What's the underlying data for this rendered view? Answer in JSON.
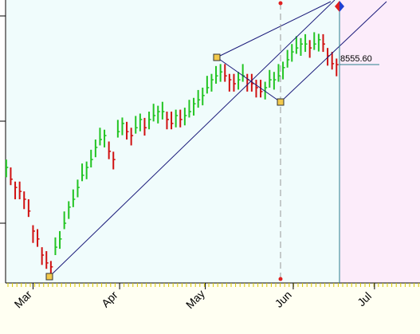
{
  "chart_data": {
    "type": "hlc",
    "high": [
      8314,
      8294,
      8258,
      8258,
      8233,
      8213,
      8147,
      8137,
      8091,
      8081,
      8056,
      8116,
      8132,
      8182,
      8208,
      8238,
      8263,
      8304,
      8309,
      8339,
      8365,
      8395,
      8390,
      8360,
      8334,
      8415,
      8421,
      8410,
      8395,
      8425,
      8431,
      8420,
      8436,
      8456,
      8451,
      8461,
      8436,
      8436,
      8441,
      8441,
      8446,
      8466,
      8471,
      8491,
      8497,
      8527,
      8532,
      8552,
      8557,
      8557,
      8532,
      8532,
      8537,
      8557,
      8532,
      8532,
      8517,
      8517,
      8512,
      8542,
      8537,
      8557,
      8563,
      8593,
      8608,
      8628,
      8623,
      8633,
      8618,
      8638,
      8634,
      8633,
      8598,
      8588,
      8571
    ],
    "low": [
      8269,
      8249,
      8213,
      8213,
      8188,
      8168,
      8102,
      8092,
      8046,
      8036,
      8011,
      8071,
      8087,
      8137,
      8163,
      8193,
      8218,
      8259,
      8264,
      8294,
      8320,
      8350,
      8345,
      8315,
      8289,
      8370,
      8376,
      8365,
      8350,
      8380,
      8386,
      8375,
      8391,
      8411,
      8406,
      8416,
      8391,
      8391,
      8396,
      8396,
      8401,
      8421,
      8426,
      8446,
      8452,
      8482,
      8487,
      8507,
      8512,
      8512,
      8487,
      8487,
      8492,
      8512,
      8487,
      8487,
      8472,
      8472,
      8467,
      8497,
      8492,
      8512,
      8518,
      8548,
      8563,
      8583,
      8578,
      8588,
      8573,
      8593,
      8589,
      8588,
      8553,
      8543,
      8526
    ],
    "close": [
      8294,
      8264,
      8243,
      8233,
      8213,
      8183,
      8132,
      8112,
      8071,
      8051,
      8041,
      8091,
      8112,
      8152,
      8193,
      8213,
      8243,
      8274,
      8294,
      8314,
      8345,
      8365,
      8375,
      8335,
      8314,
      8385,
      8406,
      8385,
      8375,
      8395,
      8416,
      8395,
      8416,
      8426,
      8436,
      8436,
      8416,
      8406,
      8426,
      8416,
      8426,
      8436,
      8456,
      8466,
      8477,
      8497,
      8517,
      8527,
      8537,
      8527,
      8517,
      8507,
      8517,
      8527,
      8517,
      8507,
      8497,
      8487,
      8497,
      8517,
      8517,
      8527,
      8548,
      8568,
      8588,
      8598,
      8608,
      8608,
      8598,
      8608,
      8619,
      8608,
      8578,
      8558,
      8555.6
    ],
    "up_color": "#22c422",
    "down_color": "#d01010",
    "last_price": {
      "value": 8555.6,
      "label": "8555.60"
    },
    "ylim": [
      8000,
      8720
    ],
    "xlim": [
      -1.4,
      92.7
    ],
    "xticks": [
      {
        "value": 6,
        "label": "Mar"
      },
      {
        "value": 25.4,
        "label": "Apr"
      },
      {
        "value": 44.6,
        "label": "May"
      },
      {
        "value": 64.3,
        "label": "Jun"
      },
      {
        "value": 82.5,
        "label": "Jul"
      }
    ]
  }
}
